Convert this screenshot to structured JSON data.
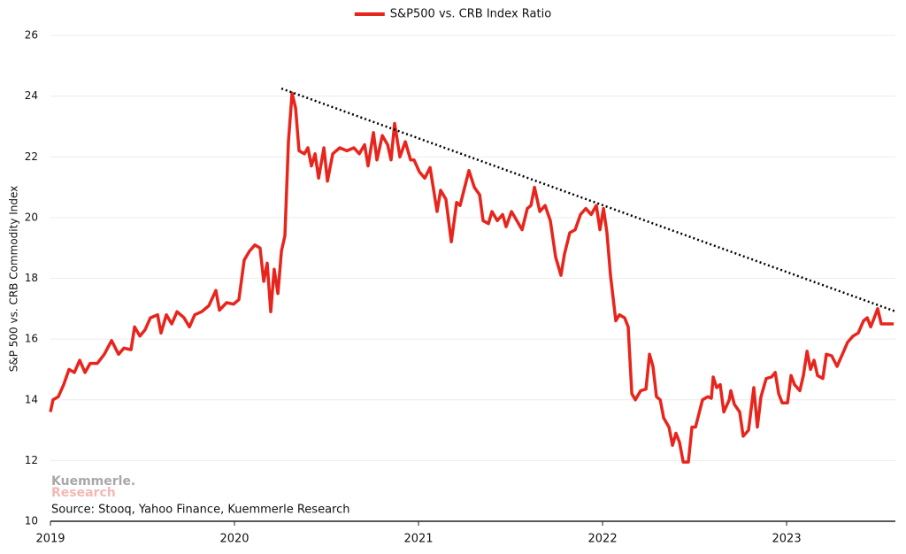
{
  "chart_data": {
    "type": "line",
    "legend_title": "S&P500 vs. CRB Index Ratio",
    "ylabel": "S&P 500 vs. CRB Commodity Index",
    "source": "Source: Stooq, Yahoo Finance, Kuemmerle Research",
    "watermark": [
      "Kuemmerle.",
      "Research"
    ],
    "legend": "top",
    "grid": true,
    "xlim": [
      2019,
      2023.591
    ],
    "xticks": [
      2019,
      2020,
      2021,
      2022,
      2023
    ],
    "ylim": [
      10,
      26
    ],
    "yticks": [
      10,
      12,
      14,
      16,
      18,
      20,
      22,
      24,
      26
    ],
    "x": [
      2019,
      2019.014,
      2019.043,
      2019.072,
      2019.101,
      2019.13,
      2019.159,
      2019.188,
      2019.216,
      2019.255,
      2019.293,
      2019.332,
      2019.37,
      2019.399,
      2019.438,
      2019.457,
      2019.486,
      2019.514,
      2019.543,
      2019.582,
      2019.601,
      2019.63,
      2019.659,
      2019.688,
      2019.726,
      2019.755,
      2019.784,
      2019.822,
      2019.861,
      2019.899,
      2019.918,
      2019.957,
      2019.995,
      2020.024,
      2020.053,
      2020.082,
      2020.111,
      2020.139,
      2020.159,
      2020.178,
      2020.197,
      2020.216,
      2020.236,
      2020.255,
      2020.274,
      2020.293,
      2020.313,
      2020.332,
      2020.351,
      2020.38,
      2020.399,
      2020.418,
      2020.438,
      2020.457,
      2020.486,
      2020.505,
      2020.534,
      2020.572,
      2020.611,
      2020.649,
      2020.678,
      2020.707,
      2020.726,
      2020.755,
      2020.774,
      2020.803,
      2020.832,
      2020.851,
      2020.87,
      2020.899,
      2020.928,
      2020.957,
      2020.976,
      2021.005,
      2021.034,
      2021.063,
      2021.101,
      2021.12,
      2021.149,
      2021.178,
      2021.207,
      2021.226,
      2021.274,
      2021.303,
      2021.332,
      2021.351,
      2021.38,
      2021.399,
      2021.428,
      2021.457,
      2021.476,
      2021.505,
      2021.534,
      2021.563,
      2021.591,
      2021.611,
      2021.63,
      2021.659,
      2021.688,
      2021.716,
      2021.745,
      2021.774,
      2021.793,
      2021.822,
      2021.851,
      2021.88,
      2021.909,
      2021.938,
      2021.966,
      2021.986,
      2022.005,
      2022.024,
      2022.043,
      2022.072,
      2022.091,
      2022.12,
      2022.139,
      2022.159,
      2022.178,
      2022.207,
      2022.236,
      2022.255,
      2022.274,
      2022.293,
      2022.313,
      2022.332,
      2022.361,
      2022.38,
      2022.399,
      2022.418,
      2022.438,
      2022.466,
      2022.486,
      2022.505,
      2022.543,
      2022.572,
      2022.591,
      2022.601,
      2022.62,
      2022.639,
      2022.659,
      2022.688,
      2022.697,
      2022.716,
      2022.745,
      2022.764,
      2022.793,
      2022.822,
      2022.841,
      2022.861,
      2022.889,
      2022.918,
      2022.938,
      2022.957,
      2022.976,
      2023.005,
      2023.024,
      2023.043,
      2023.072,
      2023.091,
      2023.111,
      2023.13,
      2023.149,
      2023.168,
      2023.197,
      2023.216,
      2023.245,
      2023.274,
      2023.303,
      2023.332,
      2023.361,
      2023.389,
      2023.418,
      2023.438,
      2023.457,
      2023.476,
      2023.495,
      2023.514,
      2023.543,
      2023.582
    ],
    "series": [
      {
        "name": "S&P500 vs. CRB Index Ratio",
        "color": "#e8251c",
        "values": [
          13.6,
          14.0,
          14.1,
          14.5,
          15.0,
          14.9,
          15.3,
          14.9,
          15.2,
          15.2,
          15.5,
          15.95,
          15.5,
          15.7,
          15.65,
          16.4,
          16.1,
          16.3,
          16.7,
          16.8,
          16.2,
          16.8,
          16.5,
          16.9,
          16.7,
          16.4,
          16.8,
          16.9,
          17.1,
          17.6,
          16.95,
          17.2,
          17.15,
          17.3,
          18.6,
          18.9,
          19.1,
          19.0,
          17.9,
          18.5,
          16.9,
          18.3,
          17.5,
          18.9,
          19.4,
          22.5,
          24.1,
          23.6,
          22.2,
          22.1,
          22.3,
          21.7,
          22.1,
          21.3,
          22.3,
          21.2,
          22.1,
          22.3,
          22.2,
          22.3,
          22.1,
          22.4,
          21.7,
          22.8,
          21.9,
          22.7,
          22.4,
          21.9,
          23.1,
          22.0,
          22.5,
          21.9,
          21.9,
          21.5,
          21.3,
          21.65,
          20.2,
          20.9,
          20.6,
          19.2,
          20.5,
          20.4,
          21.55,
          21.0,
          20.75,
          19.9,
          19.8,
          20.2,
          19.9,
          20.1,
          19.7,
          20.2,
          19.9,
          19.6,
          20.3,
          20.4,
          21.0,
          20.2,
          20.4,
          19.9,
          18.7,
          18.1,
          18.8,
          19.5,
          19.6,
          20.1,
          20.3,
          20.1,
          20.4,
          19.6,
          20.3,
          19.5,
          18.1,
          16.6,
          16.8,
          16.7,
          16.4,
          14.2,
          14.0,
          14.3,
          14.35,
          15.5,
          15.1,
          14.1,
          14.0,
          13.4,
          13.1,
          12.5,
          12.9,
          12.6,
          11.95,
          11.95,
          13.1,
          13.1,
          14.0,
          14.1,
          14.05,
          14.75,
          14.4,
          14.5,
          13.6,
          14.0,
          14.3,
          13.85,
          13.6,
          12.8,
          13.0,
          14.4,
          13.1,
          14.1,
          14.7,
          14.75,
          14.9,
          14.2,
          13.9,
          13.9,
          14.8,
          14.5,
          14.3,
          14.8,
          15.6,
          15.0,
          15.3,
          14.8,
          14.7,
          15.5,
          15.45,
          15.1,
          15.5,
          15.9,
          16.1,
          16.2,
          16.6,
          16.7,
          16.4,
          16.7,
          17.0,
          16.5,
          16.5,
          16.5
        ]
      }
    ],
    "trendline": {
      "color": "#000000",
      "x": [
        2020.255,
        2023.591
      ],
      "y": [
        24.25,
        16.91
      ]
    }
  }
}
